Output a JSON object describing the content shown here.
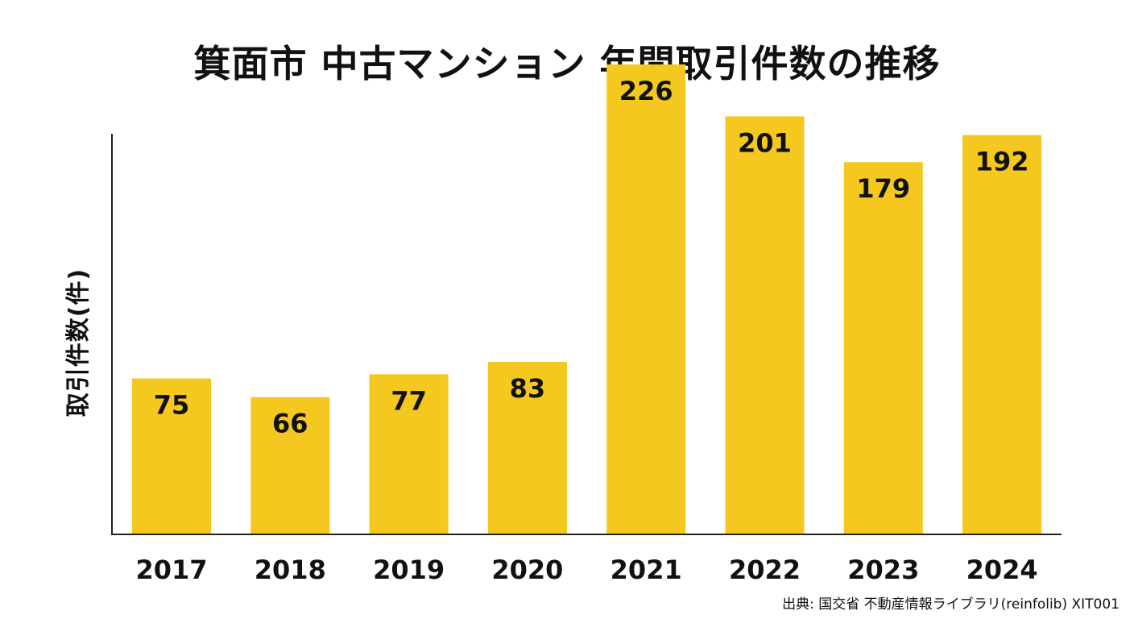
{
  "chart_data": {
    "type": "bar",
    "title": "箕面市 中古マンション 年間取引件数の推移",
    "xlabel": "",
    "ylabel": "取引件数(件)",
    "categories": [
      "2017",
      "2018",
      "2019",
      "2020",
      "2021",
      "2022",
      "2023",
      "2024"
    ],
    "values": [
      75,
      66,
      77,
      83,
      226,
      201,
      179,
      192
    ],
    "ylim": [
      0,
      250
    ],
    "grid": false,
    "legend": "none",
    "bar_color": "#F4C81E",
    "source": "出典: 国交省 不動産情報ライブラリ(reinfolib) XIT001"
  }
}
